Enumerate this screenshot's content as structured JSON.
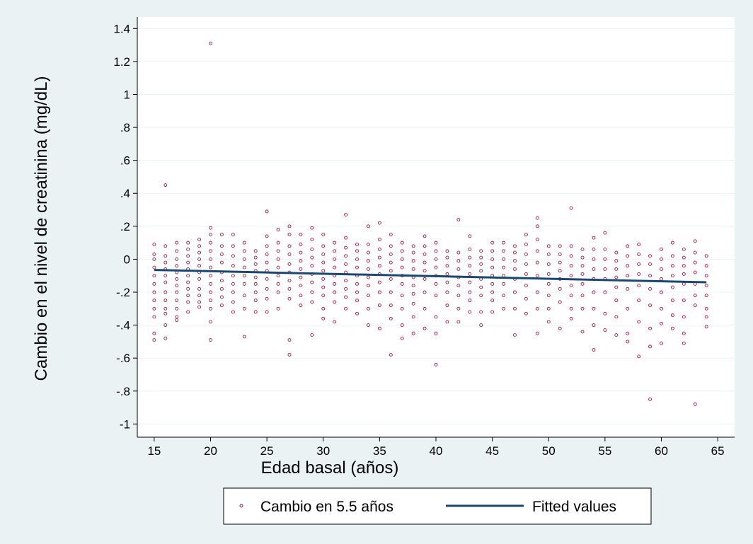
{
  "chart_data": {
    "type": "scatter",
    "xlabel": "Edad basal (años)",
    "ylabel": "Cambio en el nivel de creatinina (mg/dL)",
    "xlim": [
      13.5,
      66.5
    ],
    "ylim": [
      -1.08,
      1.47
    ],
    "x_ticks": [
      15,
      20,
      25,
      30,
      35,
      40,
      45,
      50,
      55,
      60,
      65
    ],
    "x_tick_labels": [
      "15",
      "20",
      "25",
      "30",
      "35",
      "40",
      "45",
      "50",
      "55",
      "60",
      "65"
    ],
    "y_ticks": [
      -1,
      -0.8,
      -0.6,
      -0.4,
      -0.2,
      0,
      0.2,
      0.4,
      0.6,
      0.8,
      1,
      1.2,
      1.4
    ],
    "y_tick_labels": [
      "-1",
      "-.8",
      "-.6",
      "-.4",
      "-.2",
      "0",
      ".2",
      ".4",
      ".6",
      ".8",
      "1",
      "1.2",
      "1.4"
    ],
    "grid": "horizontal",
    "legend_position": "bottom",
    "colors": {
      "scatter": "#a3164a",
      "fitted": "#1a476f",
      "plot_bg": "#ffffff",
      "page_bg": "#eaf2f3"
    },
    "series": [
      {
        "name": "Cambio en 5.5 años",
        "kind": "scatter",
        "x": [
          15,
          15,
          15,
          15,
          15,
          15,
          15,
          15,
          15,
          15,
          15,
          15,
          16,
          16,
          16,
          16,
          16,
          16,
          16,
          16,
          16,
          16,
          16,
          16,
          16,
          17,
          17,
          17,
          17,
          17,
          17,
          17,
          17,
          17,
          17,
          17,
          17,
          18,
          18,
          18,
          18,
          18,
          18,
          18,
          18,
          18,
          18,
          18,
          19,
          19,
          19,
          19,
          19,
          19,
          19,
          19,
          19,
          19,
          19,
          20,
          20,
          20,
          20,
          20,
          20,
          20,
          20,
          20,
          20,
          20,
          20,
          20,
          20,
          21,
          21,
          21,
          21,
          21,
          21,
          21,
          21,
          21,
          22,
          22,
          22,
          22,
          22,
          22,
          22,
          22,
          22,
          23,
          23,
          23,
          23,
          23,
          23,
          23,
          23,
          23,
          24,
          24,
          24,
          24,
          24,
          24,
          24,
          24,
          24,
          25,
          25,
          25,
          25,
          25,
          25,
          25,
          25,
          25,
          25,
          26,
          26,
          26,
          26,
          26,
          26,
          26,
          26,
          26,
          27,
          27,
          27,
          27,
          27,
          27,
          27,
          27,
          27,
          27,
          27,
          28,
          28,
          28,
          28,
          28,
          28,
          28,
          28,
          28,
          29,
          29,
          29,
          29,
          29,
          29,
          29,
          29,
          29,
          29,
          30,
          30,
          30,
          30,
          30,
          30,
          30,
          30,
          30,
          30,
          31,
          31,
          31,
          31,
          31,
          31,
          31,
          31,
          31,
          32,
          32,
          32,
          32,
          32,
          32,
          32,
          32,
          32,
          32,
          33,
          33,
          33,
          33,
          33,
          33,
          33,
          33,
          33,
          34,
          34,
          34,
          34,
          34,
          34,
          34,
          34,
          34,
          34,
          35,
          35,
          35,
          35,
          35,
          35,
          35,
          35,
          35,
          35,
          36,
          36,
          36,
          36,
          36,
          36,
          36,
          36,
          36,
          36,
          37,
          37,
          37,
          37,
          37,
          37,
          37,
          37,
          37,
          37,
          38,
          38,
          38,
          38,
          38,
          38,
          38,
          38,
          38,
          38,
          39,
          39,
          39,
          39,
          39,
          39,
          39,
          39,
          39,
          40,
          40,
          40,
          40,
          40,
          40,
          40,
          40,
          40,
          40,
          41,
          41,
          41,
          41,
          41,
          41,
          41,
          41,
          42,
          42,
          42,
          42,
          42,
          42,
          42,
          42,
          42,
          43,
          43,
          43,
          43,
          43,
          43,
          43,
          43,
          43,
          44,
          44,
          44,
          44,
          44,
          44,
          44,
          44,
          44,
          45,
          45,
          45,
          45,
          45,
          45,
          45,
          45,
          45,
          46,
          46,
          46,
          46,
          46,
          46,
          46,
          46,
          47,
          47,
          47,
          47,
          47,
          47,
          47,
          47,
          48,
          48,
          48,
          48,
          48,
          48,
          48,
          48,
          49,
          49,
          49,
          49,
          49,
          49,
          49,
          49,
          49,
          50,
          50,
          50,
          50,
          50,
          50,
          50,
          50,
          51,
          51,
          51,
          51,
          51,
          51,
          51,
          51,
          52,
          52,
          52,
          52,
          52,
          52,
          52,
          52,
          52,
          53,
          53,
          53,
          53,
          53,
          53,
          53,
          53,
          54,
          54,
          54,
          54,
          54,
          54,
          54,
          54,
          54,
          55,
          55,
          55,
          55,
          55,
          55,
          55,
          55,
          56,
          56,
          56,
          56,
          56,
          56,
          56,
          56,
          57,
          57,
          57,
          57,
          57,
          57,
          57,
          57,
          58,
          58,
          58,
          58,
          58,
          58,
          58,
          58,
          59,
          59,
          59,
          59,
          59,
          59,
          59,
          59,
          60,
          60,
          60,
          60,
          60,
          60,
          60,
          60,
          61,
          61,
          61,
          61,
          61,
          61,
          61,
          61,
          62,
          62,
          62,
          62,
          62,
          62,
          62,
          62,
          62,
          63,
          63,
          63,
          63,
          63,
          63,
          63,
          63,
          64,
          64,
          64,
          64,
          64,
          64,
          64,
          64
        ],
        "y": [
          0.09,
          0.03,
          0,
          -0.05,
          -0.1,
          -0.15,
          -0.2,
          -0.25,
          -0.3,
          -0.35,
          -0.45,
          -0.49,
          0.45,
          0.08,
          0.02,
          -0.02,
          -0.06,
          -0.1,
          -0.14,
          -0.2,
          -0.25,
          -0.3,
          -0.33,
          -0.4,
          -0.48,
          0.1,
          0.05,
          0,
          -0.04,
          -0.08,
          -0.12,
          -0.16,
          -0.2,
          -0.25,
          -0.3,
          -0.35,
          -0.37,
          0.1,
          0.06,
          0.02,
          -0.02,
          -0.06,
          -0.1,
          -0.14,
          -0.18,
          -0.22,
          -0.26,
          -0.32,
          0.12,
          0.08,
          0.04,
          0,
          -0.04,
          -0.08,
          -0.12,
          -0.18,
          -0.22,
          -0.26,
          -0.29,
          1.31,
          0.19,
          0.15,
          0.1,
          0.05,
          0,
          -0.05,
          -0.1,
          -0.15,
          -0.2,
          -0.25,
          -0.3,
          -0.38,
          -0.49,
          0.15,
          0.08,
          0.03,
          -0.02,
          -0.08,
          -0.13,
          -0.18,
          -0.23,
          -0.28,
          0.15,
          0.08,
          0.02,
          -0.04,
          -0.1,
          -0.15,
          -0.2,
          -0.26,
          -0.32,
          0.1,
          0.05,
          0,
          -0.05,
          -0.1,
          -0.15,
          -0.22,
          -0.3,
          -0.47,
          0.05,
          0.01,
          -0.03,
          -0.07,
          -0.11,
          -0.15,
          -0.2,
          -0.25,
          -0.32,
          0.29,
          0.14,
          0.08,
          0.03,
          -0.02,
          -0.07,
          -0.12,
          -0.18,
          -0.24,
          -0.32,
          0.18,
          0.1,
          0.05,
          0,
          -0.05,
          -0.1,
          -0.15,
          -0.2,
          -0.3,
          0.2,
          0.15,
          0.08,
          0.03,
          -0.03,
          -0.08,
          -0.13,
          -0.18,
          -0.24,
          -0.49,
          -0.58,
          0.15,
          0.09,
          0.04,
          -0.01,
          -0.06,
          -0.11,
          -0.16,
          -0.22,
          -0.28,
          0.19,
          0.12,
          0.06,
          0.01,
          -0.04,
          -0.09,
          -0.14,
          -0.2,
          -0.26,
          -0.46,
          0.15,
          0.08,
          0.03,
          -0.02,
          -0.07,
          -0.12,
          -0.17,
          -0.22,
          -0.3,
          -0.36,
          0.1,
          0.05,
          0,
          -0.05,
          -0.1,
          -0.15,
          -0.2,
          -0.26,
          -0.38,
          0.27,
          0.13,
          0.07,
          0.02,
          -0.03,
          -0.08,
          -0.13,
          -0.18,
          -0.23,
          -0.3,
          0.09,
          0.05,
          0,
          -0.05,
          -0.1,
          -0.15,
          -0.2,
          -0.25,
          -0.33,
          0.2,
          0.09,
          0.04,
          -0.01,
          -0.06,
          -0.11,
          -0.16,
          -0.22,
          -0.3,
          -0.4,
          0.22,
          0.12,
          0.06,
          0.01,
          -0.04,
          -0.09,
          -0.14,
          -0.2,
          -0.28,
          -0.42,
          0.15,
          0.08,
          0.03,
          -0.02,
          -0.07,
          -0.12,
          -0.2,
          -0.28,
          -0.36,
          -0.58,
          0.1,
          0.05,
          0,
          -0.05,
          -0.1,
          -0.15,
          -0.22,
          -0.3,
          -0.4,
          -0.48,
          0.08,
          0.04,
          -0.01,
          -0.06,
          -0.11,
          -0.16,
          -0.21,
          -0.27,
          -0.35,
          -0.45,
          0.14,
          0.08,
          0.03,
          -0.02,
          -0.07,
          -0.12,
          -0.2,
          -0.3,
          -0.42,
          0.1,
          0.05,
          0,
          -0.05,
          -0.1,
          -0.15,
          -0.22,
          -0.35,
          -0.45,
          -0.64,
          0.05,
          0.01,
          -0.04,
          -0.09,
          -0.14,
          -0.2,
          -0.28,
          -0.38,
          0.24,
          0.04,
          -0.01,
          -0.06,
          -0.11,
          -0.16,
          -0.22,
          -0.3,
          -0.38,
          0.14,
          0.06,
          0.01,
          -0.04,
          -0.09,
          -0.14,
          -0.2,
          -0.25,
          -0.32,
          0.05,
          0.01,
          -0.03,
          -0.07,
          -0.12,
          -0.17,
          -0.22,
          -0.32,
          -0.4,
          0.1,
          0.05,
          0,
          -0.05,
          -0.1,
          -0.15,
          -0.2,
          -0.25,
          -0.32,
          0.1,
          0.05,
          0,
          -0.05,
          -0.1,
          -0.15,
          -0.22,
          -0.3,
          0.08,
          0.04,
          -0.01,
          -0.06,
          -0.12,
          -0.2,
          -0.3,
          -0.46,
          0.15,
          0.09,
          0.03,
          -0.03,
          -0.09,
          -0.16,
          -0.24,
          -0.33,
          0.25,
          0.2,
          0.12,
          0.05,
          -0.02,
          -0.1,
          -0.2,
          -0.3,
          -0.45,
          0.08,
          0.03,
          -0.03,
          -0.09,
          -0.15,
          -0.22,
          -0.3,
          -0.38,
          0.08,
          0.03,
          -0.02,
          -0.07,
          -0.12,
          -0.18,
          -0.26,
          -0.42,
          0.31,
          0.08,
          0.02,
          -0.04,
          -0.1,
          -0.16,
          -0.22,
          -0.3,
          -0.36,
          0.06,
          0.01,
          -0.04,
          -0.09,
          -0.15,
          -0.22,
          -0.3,
          -0.44,
          0.13,
          0.06,
          0,
          -0.06,
          -0.12,
          -0.2,
          -0.3,
          -0.4,
          -0.55,
          0.16,
          0.06,
          0,
          -0.06,
          -0.12,
          -0.2,
          -0.33,
          -0.43,
          0.04,
          -0.01,
          -0.06,
          -0.11,
          -0.17,
          -0.25,
          -0.35,
          -0.46,
          0.08,
          0.02,
          -0.04,
          -0.1,
          -0.18,
          -0.3,
          -0.45,
          -0.5,
          0.09,
          0.03,
          -0.03,
          -0.09,
          -0.16,
          -0.25,
          -0.38,
          -0.59,
          0.02,
          -0.03,
          -0.1,
          -0.18,
          -0.28,
          -0.42,
          -0.53,
          -0.85,
          0.06,
          0,
          -0.06,
          -0.12,
          -0.2,
          -0.3,
          -0.39,
          -0.51,
          0.1,
          0.02,
          -0.04,
          -0.1,
          -0.17,
          -0.25,
          -0.34,
          -0.42,
          0.06,
          0.01,
          -0.04,
          -0.09,
          -0.15,
          -0.25,
          -0.35,
          -0.45,
          -0.51,
          0.11,
          0.04,
          -0.02,
          -0.08,
          -0.15,
          -0.22,
          -0.28,
          -0.88,
          0.02,
          -0.04,
          -0.1,
          -0.16,
          -0.22,
          -0.3,
          -0.35,
          -0.41
        ]
      },
      {
        "name": "Fitted values",
        "kind": "line",
        "x": [
          15,
          64
        ],
        "y": [
          -0.065,
          -0.14
        ]
      }
    ]
  }
}
